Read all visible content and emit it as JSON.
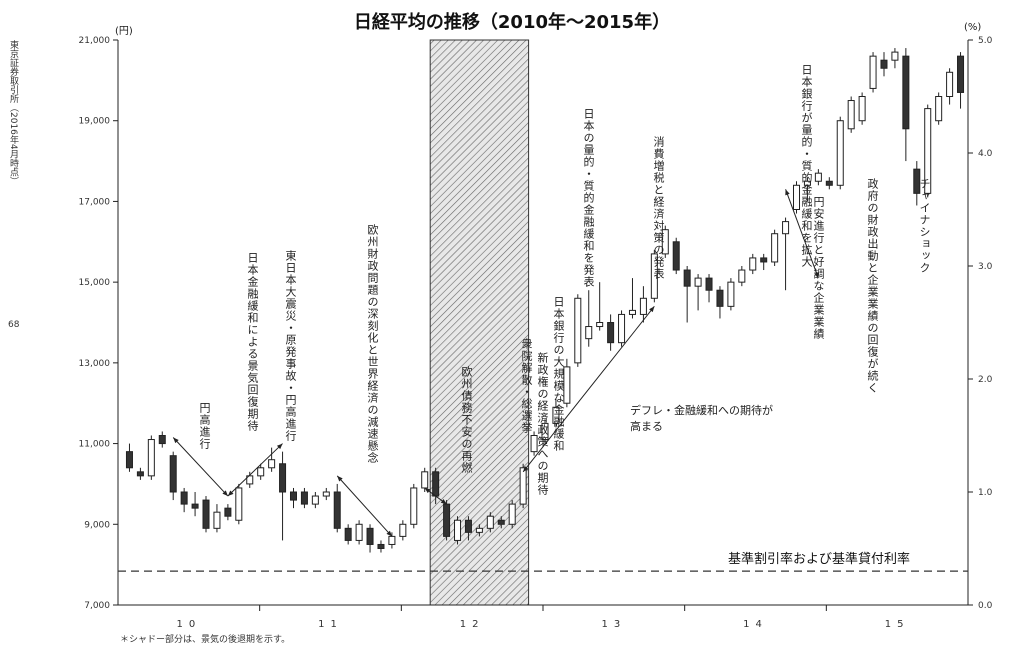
{
  "chart_data": {
    "type": "candlestick",
    "title": "日経平均の推移（2010年～2015年）",
    "y_left_unit": "(円)",
    "y_right_unit": "(%)",
    "y_left_ticks": [
      "7,000",
      "9,000",
      "11,000",
      "13,000",
      "15,000",
      "17,000",
      "19,000",
      "21,000"
    ],
    "y_right_ticks": [
      "0.0",
      "1.0",
      "2.0",
      "3.0",
      "4.0",
      "5.0"
    ],
    "ylim_left": [
      7000,
      21000
    ],
    "ylim_right": [
      0,
      5
    ],
    "x_ticks": [
      "10",
      "11",
      "12",
      "13",
      "14",
      "15"
    ],
    "series": [
      {
        "o": 10800,
        "c": 10400,
        "h": 11000,
        "l": 10300
      },
      {
        "o": 10300,
        "c": 10200,
        "h": 10400,
        "l": 10100
      },
      {
        "o": 10200,
        "c": 11100,
        "h": 11200,
        "l": 10100
      },
      {
        "o": 11200,
        "c": 11000,
        "h": 11300,
        "l": 10900
      },
      {
        "o": 10700,
        "c": 9800,
        "h": 10800,
        "l": 9600
      },
      {
        "o": 9800,
        "c": 9500,
        "h": 9900,
        "l": 9300
      },
      {
        "o": 9500,
        "c": 9400,
        "h": 9800,
        "l": 9200
      },
      {
        "o": 9600,
        "c": 8900,
        "h": 9700,
        "l": 8800
      },
      {
        "o": 8900,
        "c": 9300,
        "h": 9500,
        "l": 8800
      },
      {
        "o": 9400,
        "c": 9200,
        "h": 9500,
        "l": 9100
      },
      {
        "o": 9100,
        "c": 9900,
        "h": 10000,
        "l": 9000
      },
      {
        "o": 10000,
        "c": 10200,
        "h": 10300,
        "l": 9900
      },
      {
        "o": 10200,
        "c": 10400,
        "h": 10500,
        "l": 10100
      },
      {
        "o": 10400,
        "c": 10600,
        "h": 10900,
        "l": 10300
      },
      {
        "o": 10500,
        "c": 9800,
        "h": 10800,
        "l": 8600
      },
      {
        "o": 9800,
        "c": 9600,
        "h": 9900,
        "l": 9400
      },
      {
        "o": 9800,
        "c": 9500,
        "h": 9900,
        "l": 9400
      },
      {
        "o": 9500,
        "c": 9700,
        "h": 9800,
        "l": 9400
      },
      {
        "o": 9700,
        "c": 9800,
        "h": 9900,
        "l": 9600
      },
      {
        "o": 9800,
        "c": 8900,
        "h": 10000,
        "l": 8800
      },
      {
        "o": 8900,
        "c": 8600,
        "h": 9000,
        "l": 8500
      },
      {
        "o": 8600,
        "c": 9000,
        "h": 9100,
        "l": 8500
      },
      {
        "o": 8900,
        "c": 8500,
        "h": 9000,
        "l": 8300
      },
      {
        "o": 8500,
        "c": 8400,
        "h": 8600,
        "l": 8300
      },
      {
        "o": 8500,
        "c": 8700,
        "h": 8800,
        "l": 8400
      },
      {
        "o": 8700,
        "c": 9000,
        "h": 9100,
        "l": 8600
      },
      {
        "o": 9000,
        "c": 9900,
        "h": 10000,
        "l": 8900
      },
      {
        "o": 9900,
        "c": 10300,
        "h": 10400,
        "l": 9800
      },
      {
        "o": 10300,
        "c": 9700,
        "h": 10400,
        "l": 9500
      },
      {
        "o": 9500,
        "c": 8700,
        "h": 9600,
        "l": 8600
      },
      {
        "o": 8600,
        "c": 9100,
        "h": 9200,
        "l": 8500
      },
      {
        "o": 9100,
        "c": 8800,
        "h": 9200,
        "l": 8600
      },
      {
        "o": 8800,
        "c": 8900,
        "h": 9000,
        "l": 8700
      },
      {
        "o": 8900,
        "c": 9200,
        "h": 9300,
        "l": 8800
      },
      {
        "o": 9100,
        "c": 9000,
        "h": 9200,
        "l": 8900
      },
      {
        "o": 9000,
        "c": 9500,
        "h": 9600,
        "l": 8900
      },
      {
        "o": 9500,
        "c": 10400,
        "h": 10500,
        "l": 9400
      },
      {
        "o": 10800,
        "c": 11200,
        "h": 11300,
        "l": 10700
      },
      {
        "o": 11100,
        "c": 11500,
        "h": 11600,
        "l": 11000
      },
      {
        "o": 11500,
        "c": 11900,
        "h": 12100,
        "l": 11400
      },
      {
        "o": 12000,
        "c": 12900,
        "h": 13100,
        "l": 11900
      },
      {
        "o": 13000,
        "c": 14600,
        "h": 14700,
        "l": 12900
      },
      {
        "o": 13600,
        "c": 13900,
        "h": 14800,
        "l": 13400
      },
      {
        "o": 13900,
        "c": 14000,
        "h": 15000,
        "l": 13800
      },
      {
        "o": 14000,
        "c": 13500,
        "h": 14200,
        "l": 13300
      },
      {
        "o": 13500,
        "c": 14200,
        "h": 14300,
        "l": 13400
      },
      {
        "o": 14200,
        "c": 14300,
        "h": 15100,
        "l": 14100
      },
      {
        "o": 14200,
        "c": 14600,
        "h": 14900,
        "l": 14000
      },
      {
        "o": 14600,
        "c": 15700,
        "h": 15800,
        "l": 14500
      },
      {
        "o": 15700,
        "c": 16300,
        "h": 16400,
        "l": 15600
      },
      {
        "o": 16000,
        "c": 15300,
        "h": 16100,
        "l": 15200
      },
      {
        "o": 15300,
        "c": 14900,
        "h": 15400,
        "l": 14000
      },
      {
        "o": 14900,
        "c": 15100,
        "h": 15200,
        "l": 14300
      },
      {
        "o": 15100,
        "c": 14800,
        "h": 15200,
        "l": 14500
      },
      {
        "o": 14800,
        "c": 14400,
        "h": 14900,
        "l": 14100
      },
      {
        "o": 14400,
        "c": 15000,
        "h": 15100,
        "l": 14300
      },
      {
        "o": 15000,
        "c": 15300,
        "h": 15400,
        "l": 14900
      },
      {
        "o": 15300,
        "c": 15600,
        "h": 15700,
        "l": 15200
      },
      {
        "o": 15600,
        "c": 15500,
        "h": 15700,
        "l": 15300
      },
      {
        "o": 15500,
        "c": 16200,
        "h": 16300,
        "l": 15400
      },
      {
        "o": 16200,
        "c": 16500,
        "h": 16600,
        "l": 14800
      },
      {
        "o": 16800,
        "c": 17400,
        "h": 17500,
        "l": 16700
      },
      {
        "o": 17400,
        "c": 17500,
        "h": 17600,
        "l": 17000
      },
      {
        "o": 17500,
        "c": 17700,
        "h": 17800,
        "l": 17400
      },
      {
        "o": 17500,
        "c": 17400,
        "h": 17600,
        "l": 17300
      },
      {
        "o": 17400,
        "c": 19000,
        "h": 19100,
        "l": 17300
      },
      {
        "o": 18800,
        "c": 19500,
        "h": 19600,
        "l": 18700
      },
      {
        "o": 19000,
        "c": 19600,
        "h": 19700,
        "l": 18900
      },
      {
        "o": 19800,
        "c": 20600,
        "h": 20700,
        "l": 19700
      },
      {
        "o": 20500,
        "c": 20300,
        "h": 20700,
        "l": 20100
      },
      {
        "o": 20500,
        "c": 20700,
        "h": 20800,
        "l": 20300
      },
      {
        "o": 20600,
        "c": 18800,
        "h": 20800,
        "l": 18000
      },
      {
        "o": 17800,
        "c": 17200,
        "h": 18000,
        "l": 16900
      },
      {
        "o": 17200,
        "c": 19300,
        "h": 19400,
        "l": 17100
      },
      {
        "o": 19000,
        "c": 19600,
        "h": 19700,
        "l": 18900
      },
      {
        "o": 19600,
        "c": 20200,
        "h": 20300,
        "l": 19400
      },
      {
        "o": 20600,
        "c": 19700,
        "h": 20700,
        "l": 19300
      }
    ],
    "rate_line_value": 0.3,
    "rate_line_label": "基準割引率および基準貸付利率",
    "shaded_region": {
      "from_index": 28,
      "to_index": 36
    }
  },
  "annotations": [
    {
      "text": "円高進行"
    },
    {
      "text": "日本金融緩和による景気回復期待"
    },
    {
      "text": "東日本大震災・原発事故・円高進行"
    },
    {
      "text": "欧州財政問題の深刻化と世界経済の減速懸念"
    },
    {
      "text": "欧州債務不安の再燃"
    },
    {
      "text": "衆院解散・総選挙"
    },
    {
      "text": "新政権の経済政策への期待"
    },
    {
      "text": "日本銀行の大規模な金融緩和"
    },
    {
      "text": "日本の量的・質的金融緩和を発表"
    },
    {
      "text": "消費増税と経済対策の発表"
    },
    {
      "text": "日本銀行が量的・質的金融緩和を拡大"
    },
    {
      "text": "円安進行と好調な企業業績"
    },
    {
      "text": "政府の財政出動と企業業績の回復が続く"
    },
    {
      "text": "チャイナショック"
    },
    {
      "text": "デフレ・金融緩和への期待が高まる"
    }
  ],
  "side_label": "東京証券取引所（2016年4月時点）",
  "side_num": "68",
  "footnote": "＊シャドー部分は、景気の後退期を示す。"
}
